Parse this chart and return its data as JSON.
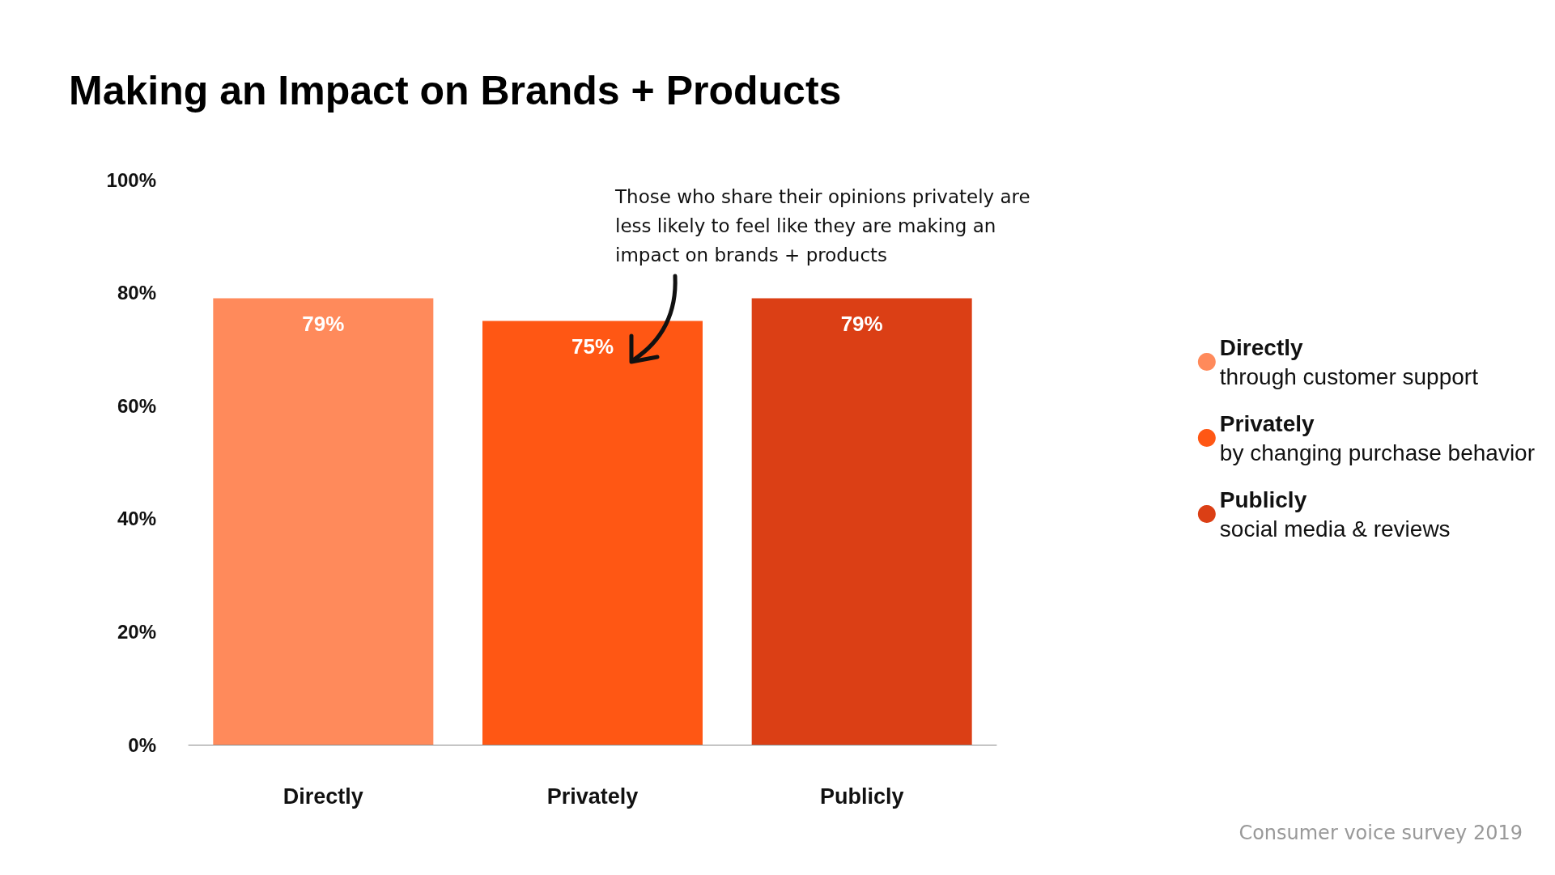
{
  "chart_data": {
    "type": "bar",
    "title": "Making an Impact on Brands + Products",
    "categories": [
      "Directly",
      "Privately",
      "Publicly"
    ],
    "series": [
      {
        "name": "Directly",
        "color": "#ff8a5b",
        "values": [
          79,
          null,
          null
        ],
        "value_labels": [
          "79%",
          null,
          null
        ]
      },
      {
        "name": "Privately",
        "color": "#ff5714",
        "values": [
          null,
          75,
          null
        ],
        "value_labels": [
          null,
          "75%",
          null
        ]
      },
      {
        "name": "Publicly",
        "color": "#db3f15",
        "values": [
          null,
          null,
          79
        ],
        "value_labels": [
          null,
          null,
          "79%"
        ]
      }
    ],
    "ylim": [
      0,
      100
    ],
    "yticks": [
      {
        "value": 0,
        "label": "0%"
      },
      {
        "value": 20,
        "label": "20%"
      },
      {
        "value": 40,
        "label": "40%"
      },
      {
        "value": 60,
        "label": "60%"
      },
      {
        "value": 80,
        "label": "80%"
      },
      {
        "value": 100,
        "label": "100%"
      }
    ],
    "grid": false,
    "legend": "right",
    "annotations": [
      "Those who share their opinions privately are less likely to feel like they are making an impact on brands + products",
      "through customer support",
      "by changing purchase behavior",
      "social media & reviews",
      "Consumer voice survey 2019"
    ]
  }
}
